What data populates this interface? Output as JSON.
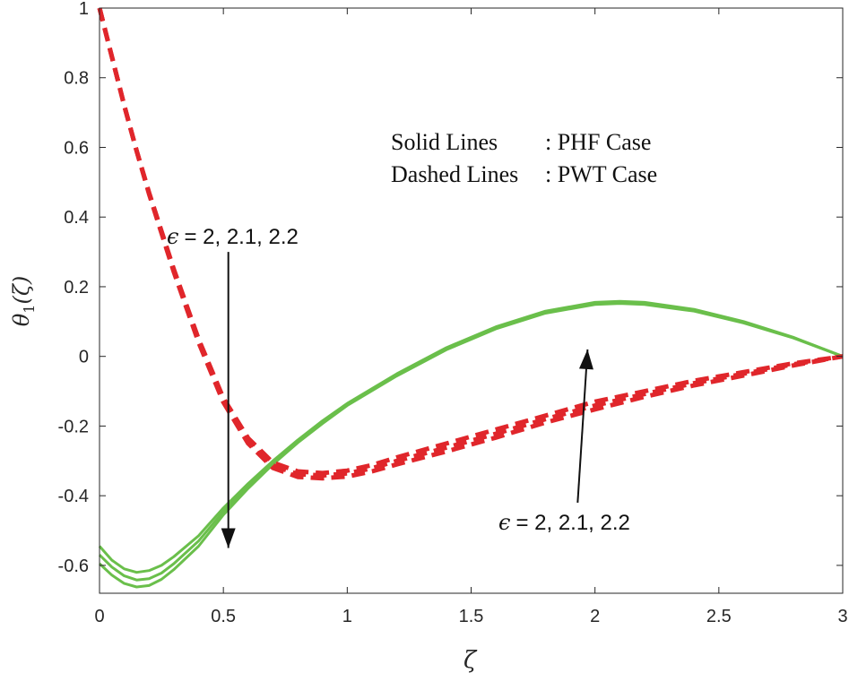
{
  "chart_data": {
    "type": "line",
    "title": "",
    "xlabel": "ζ",
    "ylabel": "θ1(ζ)",
    "ylabel_main": "θ",
    "ylabel_sub": "1",
    "ylabel_arg": "(ζ)",
    "xlim": [
      0,
      3
    ],
    "ylim": [
      -0.68,
      1.0
    ],
    "xticks": [
      0,
      0.5,
      1,
      1.5,
      2,
      2.5,
      3
    ],
    "xtick_labels": [
      "0",
      "0.5",
      "1",
      "1.5",
      "2",
      "2.5",
      "3"
    ],
    "yticks": [
      -0.6,
      -0.4,
      -0.2,
      0,
      0.2,
      0.4,
      0.6,
      0.8,
      1
    ],
    "ytick_labels": [
      "-0.6",
      "-0.4",
      "-0.2",
      "0",
      "0.2",
      "0.4",
      "0.6",
      "0.8",
      "1"
    ],
    "grid": false,
    "legend": {
      "solid_label": "Solid Lines",
      "solid_case": ": PHF Case",
      "dashed_label": "Dashed Lines",
      "dashed_case": ": PWT Case"
    },
    "annotations": [
      {
        "name": "upper-epsilon",
        "epsilon": "ϵ",
        "text": "= 2, 2.1, 2.2",
        "arrow": "down",
        "arrow_x": 0.52,
        "arrow_from": 0.3,
        "arrow_to": -0.55
      },
      {
        "name": "lower-epsilon",
        "epsilon": "ϵ",
        "text": "= 2, 2.1, 2.2",
        "arrow": "up",
        "arrow_x_from": 1.93,
        "arrow_x_to": 1.97,
        "arrow_from": -0.42,
        "arrow_to": 0.02
      }
    ],
    "series": [
      {
        "name": "PHF ϵ=2",
        "style": "solid",
        "color": "#6abf4b",
        "x": [
          0,
          0.05,
          0.1,
          0.15,
          0.2,
          0.25,
          0.3,
          0.4,
          0.5,
          0.6,
          0.7,
          0.8,
          0.9,
          1.0,
          1.2,
          1.4,
          1.6,
          1.8,
          2.0,
          2.1,
          2.2,
          2.4,
          2.6,
          2.8,
          3.0
        ],
        "y": [
          -0.545,
          -0.585,
          -0.61,
          -0.62,
          -0.615,
          -0.6,
          -0.575,
          -0.515,
          -0.435,
          -0.365,
          -0.3,
          -0.24,
          -0.185,
          -0.135,
          -0.05,
          0.025,
          0.085,
          0.13,
          0.155,
          0.158,
          0.155,
          0.135,
          0.1,
          0.055,
          0.0
        ]
      },
      {
        "name": "PHF ϵ=2.1",
        "style": "solid",
        "color": "#6abf4b",
        "x": [
          0,
          0.05,
          0.1,
          0.15,
          0.2,
          0.25,
          0.3,
          0.4,
          0.5,
          0.6,
          0.7,
          0.8,
          0.9,
          1.0,
          1.2,
          1.4,
          1.6,
          1.8,
          2.0,
          2.1,
          2.2,
          2.4,
          2.6,
          2.8,
          3.0
        ],
        "y": [
          -0.57,
          -0.605,
          -0.63,
          -0.642,
          -0.638,
          -0.622,
          -0.595,
          -0.53,
          -0.445,
          -0.372,
          -0.305,
          -0.244,
          -0.189,
          -0.138,
          -0.053,
          0.022,
          0.082,
          0.127,
          0.152,
          0.155,
          0.152,
          0.132,
          0.098,
          0.054,
          0.0
        ]
      },
      {
        "name": "PHF ϵ=2.2",
        "style": "solid",
        "color": "#6abf4b",
        "x": [
          0,
          0.05,
          0.1,
          0.15,
          0.2,
          0.25,
          0.3,
          0.4,
          0.5,
          0.6,
          0.7,
          0.8,
          0.9,
          1.0,
          1.2,
          1.4,
          1.6,
          1.8,
          2.0,
          2.1,
          2.2,
          2.4,
          2.6,
          2.8,
          3.0
        ],
        "y": [
          -0.595,
          -0.628,
          -0.652,
          -0.662,
          -0.658,
          -0.64,
          -0.612,
          -0.545,
          -0.455,
          -0.379,
          -0.31,
          -0.248,
          -0.193,
          -0.141,
          -0.056,
          0.019,
          0.079,
          0.124,
          0.149,
          0.152,
          0.149,
          0.13,
          0.096,
          0.053,
          0.0
        ]
      },
      {
        "name": "PWT ϵ=2",
        "style": "dashed",
        "color": "#e0262b",
        "x": [
          0,
          0.05,
          0.1,
          0.15,
          0.2,
          0.3,
          0.4,
          0.5,
          0.6,
          0.7,
          0.8,
          0.9,
          1.0,
          1.1,
          1.2,
          1.4,
          1.6,
          1.8,
          2.0,
          2.2,
          2.4,
          2.6,
          2.8,
          3.0
        ],
        "y": [
          1.0,
          0.86,
          0.72,
          0.59,
          0.47,
          0.25,
          0.05,
          -0.12,
          -0.235,
          -0.305,
          -0.33,
          -0.335,
          -0.328,
          -0.312,
          -0.29,
          -0.25,
          -0.21,
          -0.17,
          -0.13,
          -0.1,
          -0.07,
          -0.045,
          -0.02,
          0.0
        ]
      },
      {
        "name": "PWT ϵ=2.1",
        "style": "dashed",
        "color": "#e0262b",
        "x": [
          0,
          0.05,
          0.1,
          0.15,
          0.2,
          0.3,
          0.4,
          0.5,
          0.6,
          0.7,
          0.8,
          0.9,
          1.0,
          1.1,
          1.2,
          1.4,
          1.6,
          1.8,
          2.0,
          2.2,
          2.4,
          2.6,
          2.8,
          3.0
        ],
        "y": [
          1.0,
          0.86,
          0.72,
          0.59,
          0.468,
          0.246,
          0.045,
          -0.126,
          -0.243,
          -0.313,
          -0.338,
          -0.342,
          -0.336,
          -0.321,
          -0.3,
          -0.262,
          -0.222,
          -0.18,
          -0.141,
          -0.108,
          -0.077,
          -0.05,
          -0.023,
          0.0
        ]
      },
      {
        "name": "PWT ϵ=2.2",
        "style": "dashed",
        "color": "#e0262b",
        "x": [
          0,
          0.05,
          0.1,
          0.15,
          0.2,
          0.3,
          0.4,
          0.5,
          0.6,
          0.7,
          0.8,
          0.9,
          1.0,
          1.1,
          1.2,
          1.4,
          1.6,
          1.8,
          2.0,
          2.2,
          2.4,
          2.6,
          2.8,
          3.0
        ],
        "y": [
          1.0,
          0.86,
          0.72,
          0.59,
          0.466,
          0.242,
          0.04,
          -0.132,
          -0.25,
          -0.32,
          -0.346,
          -0.35,
          -0.345,
          -0.33,
          -0.31,
          -0.273,
          -0.233,
          -0.19,
          -0.152,
          -0.116,
          -0.083,
          -0.055,
          -0.026,
          0.0
        ]
      }
    ]
  }
}
